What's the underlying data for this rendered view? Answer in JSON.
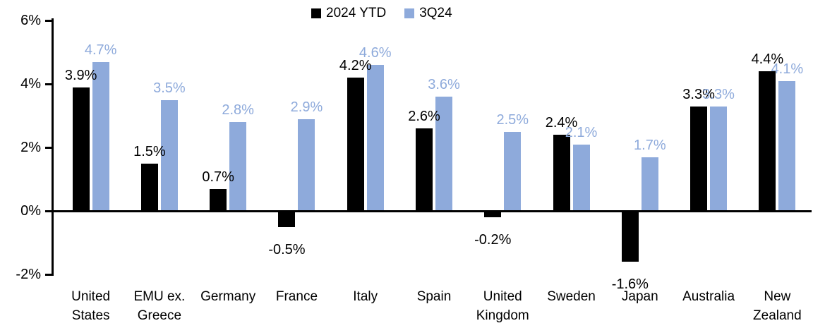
{
  "chart_data": {
    "type": "bar",
    "title": "",
    "xlabel": "",
    "ylabel": "",
    "ylim": [
      -2,
      6
    ],
    "grid": false,
    "legend_position": "top-center",
    "background_color": "#FFFFFF",
    "axis_color": "#000000",
    "categories": [
      "United States",
      "EMU ex. Greece",
      "Germany",
      "France",
      "Italy",
      "Spain",
      "United Kingdom",
      "Sweden",
      "Japan",
      "Australia",
      "New Zealand"
    ],
    "category_lines": [
      [
        "United",
        "States"
      ],
      [
        "EMU ex.",
        "Greece"
      ],
      [
        "Germany"
      ],
      [
        "France"
      ],
      [
        "Italy"
      ],
      [
        "Spain"
      ],
      [
        "United",
        "Kingdom"
      ],
      [
        "Sweden"
      ],
      [
        "Japan"
      ],
      [
        "Australia"
      ],
      [
        "New",
        "Zealand"
      ]
    ],
    "yticks": [
      {
        "value": 6,
        "label": "6%"
      },
      {
        "value": 4,
        "label": "4%"
      },
      {
        "value": 2,
        "label": "2%"
      },
      {
        "value": 0,
        "label": "0%"
      },
      {
        "value": -2,
        "label": "-2%"
      }
    ],
    "series": [
      {
        "name": "2024 YTD",
        "color": "#000000",
        "values": [
          3.9,
          1.5,
          0.7,
          -0.5,
          4.2,
          2.6,
          -0.2,
          2.4,
          -1.6,
          3.3,
          4.4
        ],
        "data_labels": [
          "3.9%",
          "1.5%",
          "0.7%",
          "-0.5%",
          "4.2%",
          "2.6%",
          "-0.2%",
          "2.4%",
          "-1.6%",
          "3.3%",
          "4.4%"
        ]
      },
      {
        "name": "3Q24",
        "color": "#8EAADB",
        "values": [
          4.7,
          3.5,
          2.8,
          2.9,
          4.6,
          3.6,
          2.5,
          2.1,
          1.7,
          3.3,
          4.1
        ],
        "data_labels": [
          "4.7%",
          "3.5%",
          "2.8%",
          "2.9%",
          "4.6%",
          "3.6%",
          "2.5%",
          "2.1%",
          "1.7%",
          "3.3%",
          "4.1%"
        ]
      }
    ]
  }
}
